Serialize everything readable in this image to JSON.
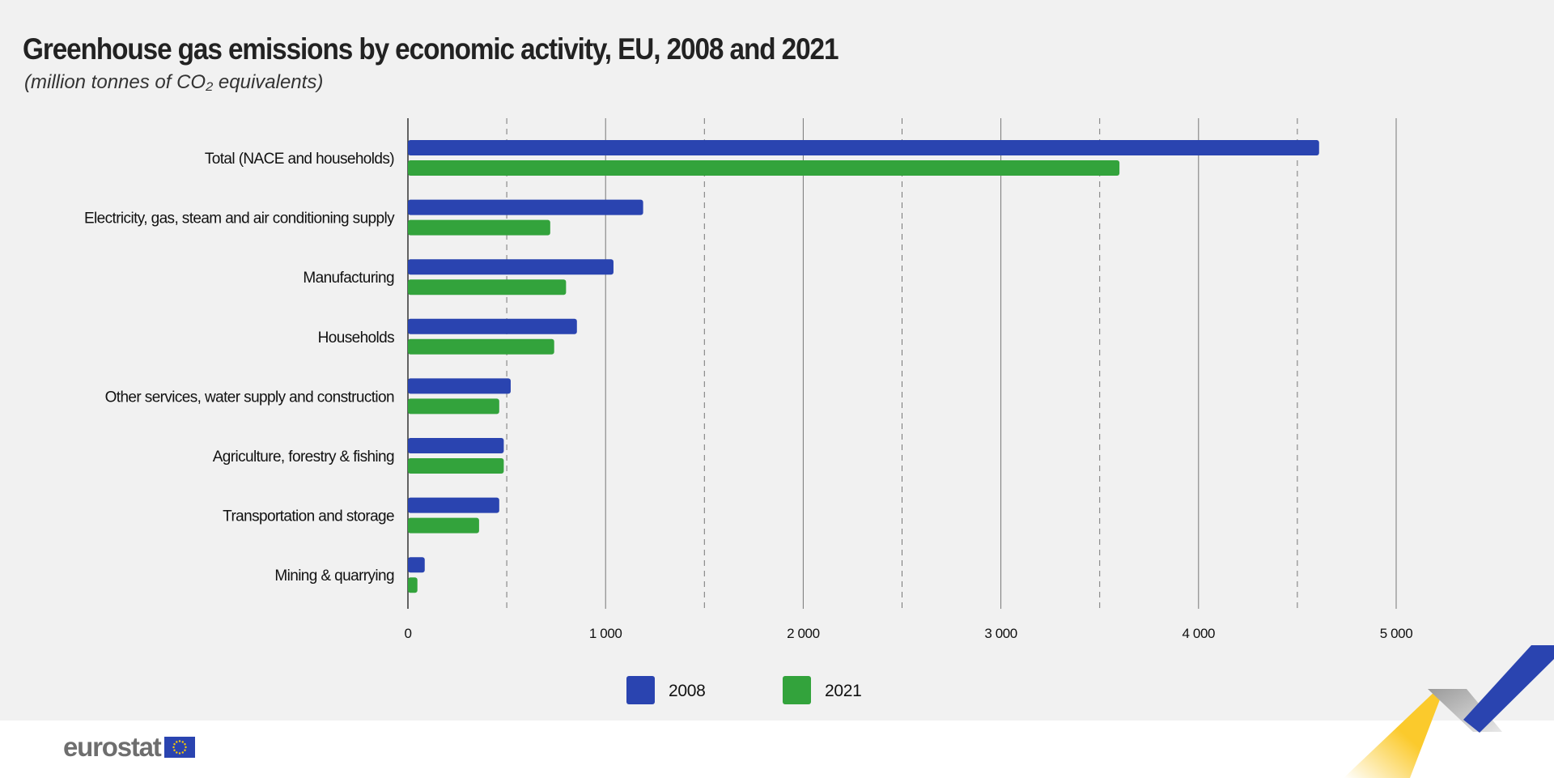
{
  "header": {
    "title": "Greenhouse gas emissions by economic activity, EU, 2008 and 2021",
    "subtitle": "(million tonnes of CO₂ equivalents)"
  },
  "chart_data": {
    "type": "bar",
    "orientation": "horizontal",
    "categories": [
      "Total (NACE and households)",
      "Electricity, gas, steam and air conditioning supply",
      "Manufacturing",
      "Households",
      "Other services, water supply and construction",
      "Agriculture, forestry & fishing",
      "Transportation and storage",
      "Mining & quarrying"
    ],
    "series": [
      {
        "name": "2008",
        "color": "#2a44b0",
        "values": [
          4610,
          1190,
          1040,
          855,
          520,
          485,
          462,
          85
        ]
      },
      {
        "name": "2021",
        "color": "#33a33c",
        "values": [
          3600,
          720,
          800,
          740,
          462,
          485,
          360,
          48
        ]
      }
    ],
    "xlim": [
      0,
      5000
    ],
    "xticks": [
      0,
      1000,
      2000,
      3000,
      4000,
      5000
    ],
    "xtick_labels": [
      "0",
      "1 000",
      "2 000",
      "3 000",
      "4 000",
      "5 000"
    ],
    "grid": "vertical, solid at major ticks, dashed at midpoints",
    "legend_position": "bottom-center"
  },
  "branding": {
    "logo_text": "eurostat",
    "flag_color": "#2a44b0",
    "star_color": "#ffcc00"
  }
}
